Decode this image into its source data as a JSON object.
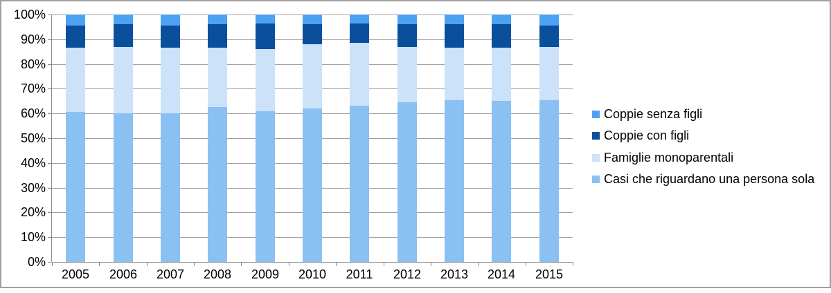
{
  "chart_data": {
    "type": "bar",
    "subtype": "stacked-100-percent",
    "title": "",
    "xlabel": "",
    "ylabel": "",
    "categories": [
      "2005",
      "2006",
      "2007",
      "2008",
      "2009",
      "2010",
      "2011",
      "2012",
      "2013",
      "2014",
      "2015"
    ],
    "series": [
      {
        "name": "Casi che riguardano una persona sola",
        "color": "#8AC0F2",
        "values": [
          60.5,
          60,
          60,
          62.5,
          61,
          62,
          63,
          64.5,
          65.5,
          65,
          65.5
        ]
      },
      {
        "name": "Famiglie monoparentali",
        "color": "#CBE2F8",
        "values": [
          26,
          27,
          26.5,
          24,
          25,
          26,
          25.5,
          22.5,
          21,
          21.5,
          21.5
        ]
      },
      {
        "name": "Coppie con figli",
        "color": "#0A4F9C",
        "values": [
          9,
          9,
          9,
          9.5,
          10.5,
          8,
          8,
          9,
          9.5,
          9.5,
          8.5
        ]
      },
      {
        "name": "Coppie senza figli",
        "color": "#4DA1F2",
        "values": [
          4.5,
          4,
          4.5,
          4,
          3.5,
          4,
          3.5,
          4,
          4,
          4,
          4.5
        ]
      }
    ],
    "stack_order": "bottom-to-top",
    "y_axis": {
      "min": 0,
      "max": 100,
      "step": 10,
      "suffix": "%",
      "tick_labels": [
        "0%",
        "10%",
        "20%",
        "30%",
        "40%",
        "50%",
        "60%",
        "70%",
        "80%",
        "90%",
        "100%"
      ]
    },
    "legend": {
      "position": "right",
      "entries": [
        "Coppie senza figli",
        "Coppie con figli",
        "Famiglie monoparentali",
        "Casi che riguardano una persona sola"
      ]
    },
    "grid": true,
    "colors": {
      "gridline": "#9E9E9E",
      "axis": "#8A8A8A",
      "border": "#A0A0A0",
      "text": "#000000",
      "background": "#FFFFFF"
    }
  }
}
